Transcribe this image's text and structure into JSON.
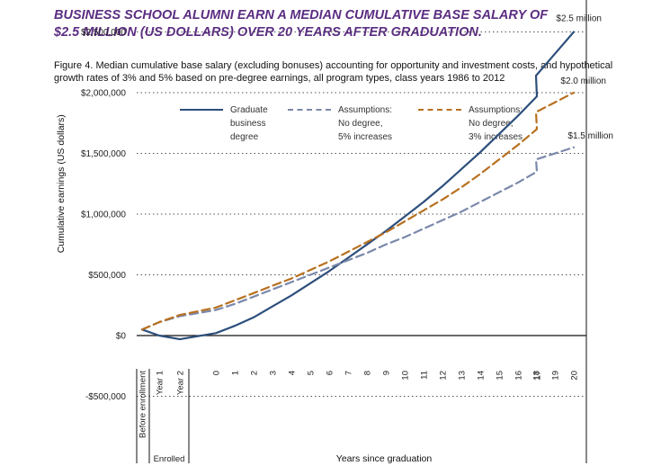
{
  "headline": {
    "line1": "BUSINESS SCHOOL ALUMNI EARN A MEDIAN CUMULATIVE BASE SALARY OF",
    "line2": "$2.5 MILLION (US DOLLARS) OVER 20 YEARS AFTER GRADUATION."
  },
  "caption": "Figure 4. Median cumulative base salary (excluding bonuses) accounting for opportunity and investment costs, and hypothetical growth rates of 3% and 5% based on pre-degree earnings, all program types, class years 1986 to 2012",
  "colors": {
    "headline": "#5b2d82",
    "graduate": "#2d4f7c",
    "five_percent": "#7a88aa",
    "three_percent": "#b8701f",
    "grid": "#555555"
  },
  "legend": [
    {
      "key": "graduate",
      "lines": [
        "Graduate",
        "business",
        "degree"
      ],
      "style": "solid",
      "color": "#2d4f7c"
    },
    {
      "key": "five",
      "lines": [
        "Assumptions:",
        "No degree,",
        "5% increases"
      ],
      "style": "dashed",
      "color": "#7a88aa"
    },
    {
      "key": "three",
      "lines": [
        "Assumptions:",
        "No degree,",
        "3% increases"
      ],
      "style": "dashed",
      "color": "#b8701f"
    }
  ],
  "chart_data": {
    "type": "line",
    "ylabel": "Cumulative earnings (US dollars)",
    "xlabel": "Years since graduation",
    "enrolled_label": "Enrolled",
    "ylim": [
      -500000,
      3000000
    ],
    "y_ticks": [
      3000000,
      2500000,
      2000000,
      1500000,
      1000000,
      500000,
      0,
      -500000
    ],
    "y_tick_labels": [
      "$3,000,000",
      "$2,500,000",
      "$2,000,000",
      "$1,500,000",
      "$1,000,000",
      "$500,000",
      "$0",
      "-$500,000"
    ],
    "grid": "horizontal dotted",
    "categories": [
      "Before enrollment",
      "Year 1",
      "Year 2",
      "0",
      "1",
      "2",
      "3",
      "4",
      "5",
      "6",
      "7",
      "8",
      "9",
      "10",
      "11",
      "12",
      "13",
      "14",
      "15",
      "16",
      "17",
      "18",
      "19",
      "20"
    ],
    "series": [
      {
        "name": "Graduate business degree",
        "color": "#2d4f7c",
        "dash": "solid",
        "values": [
          50000,
          0,
          -30000,
          20000,
          80000,
          150000,
          240000,
          330000,
          430000,
          530000,
          640000,
          750000,
          860000,
          980000,
          1100000,
          1230000,
          1370000,
          1510000,
          1660000,
          1810000,
          1970000,
          2140000,
          2320000,
          2500000
        ]
      },
      {
        "name": "Assumptions: No degree, 5% increases",
        "color": "#7a88aa",
        "dash": "dashed",
        "values": [
          50000,
          110000,
          160000,
          210000,
          260000,
          320000,
          380000,
          440000,
          500000,
          560000,
          620000,
          680000,
          750000,
          810000,
          880000,
          950000,
          1020000,
          1100000,
          1180000,
          1260000,
          1350000,
          1450000,
          1550000,
          1550000
        ]
      },
      {
        "name": "Assumptions: No degree, 3% increases",
        "color": "#b8701f",
        "dash": "dashed",
        "values": [
          50000,
          110000,
          170000,
          230000,
          290000,
          350000,
          410000,
          470000,
          540000,
          610000,
          690000,
          770000,
          850000,
          940000,
          1030000,
          1120000,
          1220000,
          1330000,
          1450000,
          1570000,
          1700000,
          1840000,
          2000000,
          2000000
        ]
      }
    ],
    "annotations": [
      {
        "text": "$2.5 million",
        "series": 0
      },
      {
        "text": "$2.0 million",
        "series": 2
      },
      {
        "text": "$1.5 million",
        "series": 1
      }
    ]
  }
}
